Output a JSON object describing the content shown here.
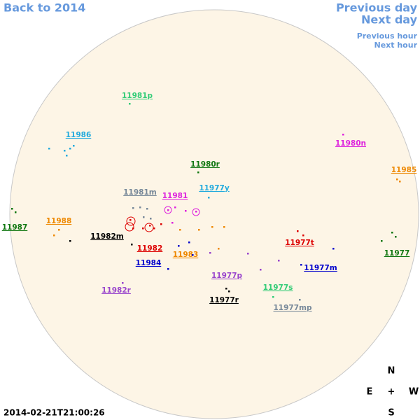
{
  "nav": {
    "back": "Back to 2014",
    "previous_day": "Previous day",
    "next_day": "Next day",
    "previous_hour": "Previous hour",
    "next_hour": "Next hour"
  },
  "regions": [
    {
      "label": "11981p",
      "color": "#33cc77"
    },
    {
      "label": "11986",
      "color": "#22aadd"
    },
    {
      "label": "11980n",
      "color": "#dd22dd"
    },
    {
      "label": "11980r",
      "color": "#117711"
    },
    {
      "label": "11985",
      "color": "#ee8800"
    },
    {
      "label": "11981m",
      "color": "#778899"
    },
    {
      "label": "11981",
      "color": "#dd22dd"
    },
    {
      "label": "11977y",
      "color": "#22aadd"
    },
    {
      "label": "11987",
      "color": "#117711"
    },
    {
      "label": "11988",
      "color": "#ee8800"
    },
    {
      "label": "11982m",
      "color": "#000000"
    },
    {
      "label": "11982",
      "color": "#dd0000"
    },
    {
      "label": "11977t",
      "color": "#dd0000"
    },
    {
      "label": "11977",
      "color": "#117711"
    },
    {
      "label": "11983",
      "color": "#ee8800"
    },
    {
      "label": "11984",
      "color": "#0000cc"
    },
    {
      "label": "11977m",
      "color": "#0000cc"
    },
    {
      "label": "11977p",
      "color": "#9944cc"
    },
    {
      "label": "11982r",
      "color": "#9944cc"
    },
    {
      "label": "11977s",
      "color": "#33cc77"
    },
    {
      "label": "11977r",
      "color": "#000000"
    },
    {
      "label": "11977mp",
      "color": "#778899"
    }
  ],
  "compass": {
    "north": "N",
    "east": "E",
    "center": "+",
    "west": "W",
    "south": "S"
  },
  "timestamp": "2014-02-21T21:00:26"
}
